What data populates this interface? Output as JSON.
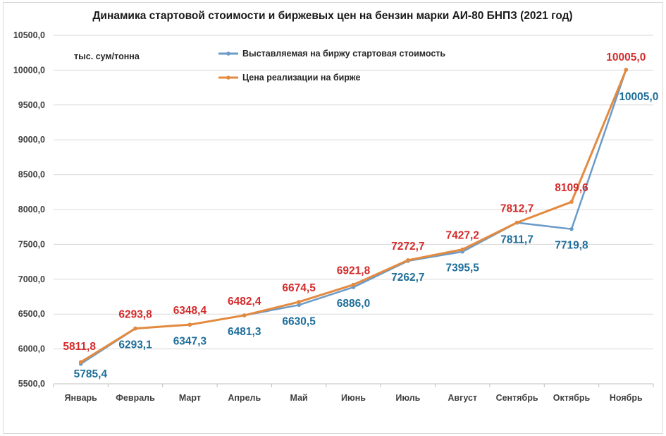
{
  "chart_data": {
    "type": "line",
    "title": "Динамика стартовой стоимости и биржевых цен на бензин марки АИ-80 БНПЗ (2021 год)",
    "unit_label": "тыс. сум/тонна",
    "xlabel": "",
    "ylabel": "",
    "categories": [
      "Январь",
      "Февраль",
      "Март",
      "Апрель",
      "Май",
      "Июнь",
      "Июль",
      "Август",
      "Сентябрь",
      "Октябрь",
      "Ноябрь"
    ],
    "ylim": [
      5500,
      10500
    ],
    "yticks": [
      "5500,0",
      "6000,0",
      "6500,0",
      "7000,0",
      "7500,0",
      "8000,0",
      "8500,0",
      "9000,0",
      "9500,0",
      "10000,0",
      "10500,0"
    ],
    "grid": "horizontal",
    "legend_position": "top-center",
    "series": [
      {
        "name": "Выставляемая на биржу стартовая стоимость",
        "color": "#6b9bc8",
        "label_color": "#1f6e99",
        "values": [
          5785.4,
          6293.1,
          6347.3,
          6481.3,
          6630.5,
          6886.0,
          7262.7,
          7395.5,
          7811.7,
          7719.8,
          10005.0
        ],
        "labels": [
          "5785,4",
          "6293,1",
          "6347,3",
          "6481,3",
          "6630,5",
          "6886,0",
          "7262,7",
          "7395,5",
          "7811,7",
          "7719,8",
          "10005,0"
        ]
      },
      {
        "name": "Цена реализации на бирже",
        "color": "#e38a3f",
        "label_color": "#d42b2b",
        "values": [
          5811.8,
          6293.8,
          6348.4,
          6482.4,
          6674.5,
          6921.8,
          7272.7,
          7427.2,
          7812.7,
          8109.6,
          10005.0
        ],
        "labels": [
          "5811,8",
          "6293,8",
          "6348,4",
          "6482,4",
          "6674,5",
          "6921,8",
          "7272,7",
          "7427,2",
          "7812,7",
          "8109,6",
          "10005,0"
        ]
      }
    ]
  }
}
